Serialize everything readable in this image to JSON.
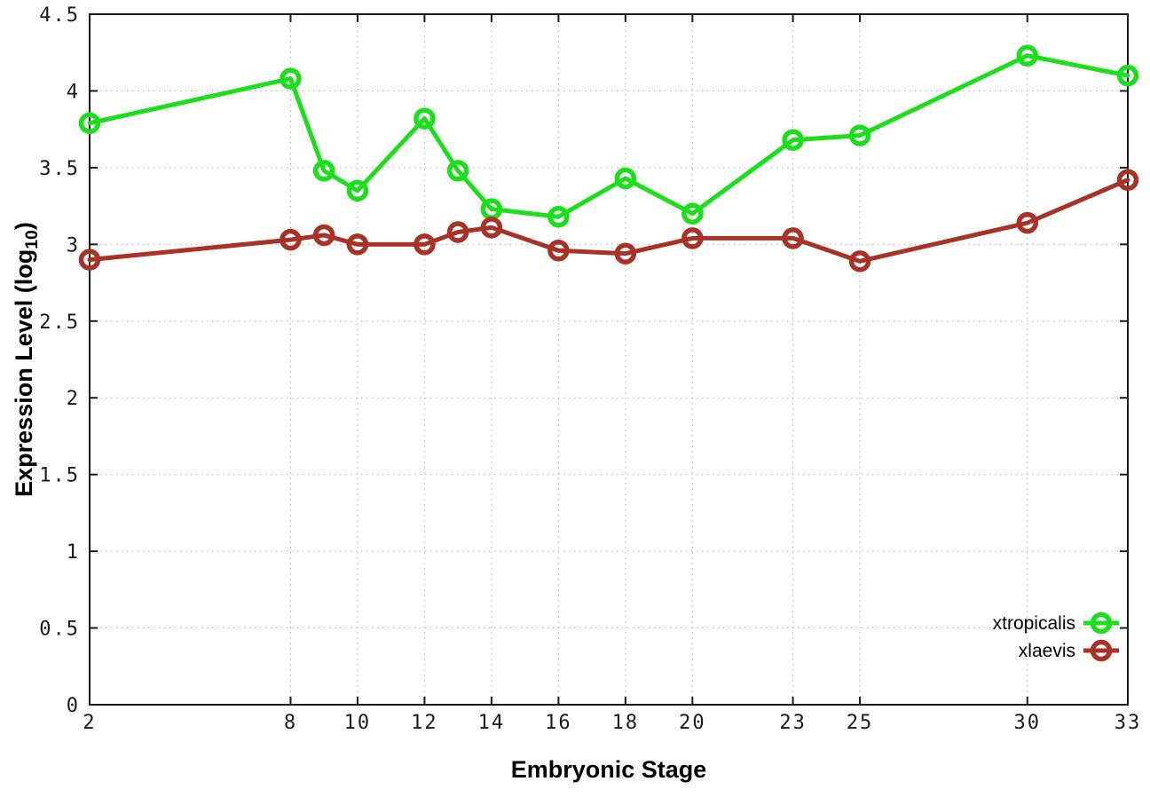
{
  "chart_data": {
    "type": "line",
    "title": "",
    "xlabel": "Embryonic Stage",
    "ylabel": "Expression Level (log10)",
    "ylabel_base": "Expression Level (log",
    "ylabel_sub": "10",
    "ylabel_close": ")",
    "x": [
      2,
      8,
      9,
      10,
      12,
      13,
      14,
      16,
      18,
      20,
      23,
      25,
      30,
      33
    ],
    "series": [
      {
        "name": "xtropicalis",
        "color": "#1adf1a",
        "values": [
          3.79,
          4.08,
          3.48,
          3.35,
          3.82,
          3.48,
          3.23,
          3.18,
          3.43,
          3.2,
          3.68,
          3.71,
          4.23,
          4.1
        ]
      },
      {
        "name": "xlaevis",
        "color": "#a93226",
        "values": [
          2.9,
          3.03,
          3.06,
          3.0,
          3.0,
          3.08,
          3.11,
          2.96,
          2.94,
          3.04,
          3.04,
          2.89,
          3.14,
          3.42
        ]
      }
    ],
    "xticks": [
      2,
      8,
      10,
      12,
      14,
      16,
      18,
      20,
      23,
      25,
      30,
      33
    ],
    "yticks": [
      0,
      0.5,
      1,
      1.5,
      2,
      2.5,
      3,
      3.5,
      4,
      4.5
    ],
    "xlim": [
      2,
      33
    ],
    "ylim": [
      0,
      4.5
    ],
    "grid": true,
    "grid_style": "dotted",
    "legend_position": "bottom-right",
    "legend_entries": [
      "xtropicalis",
      "xlaevis"
    ],
    "colors": {
      "background": "#ffffff",
      "axis": "#1a1a1a",
      "grid": "#b3b3b3",
      "xtropicalis": "#1adf1a",
      "xlaevis": "#a93226"
    },
    "marker": "open-circle"
  }
}
